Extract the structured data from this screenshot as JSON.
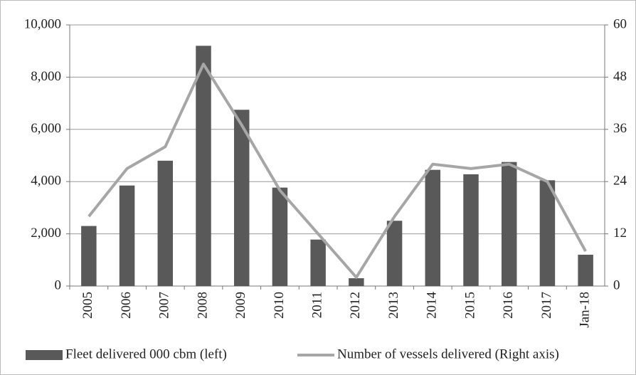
{
  "chart_data": {
    "type": "bar-line",
    "categories": [
      "2005",
      "2006",
      "2007",
      "2008",
      "2009",
      "2010",
      "2011",
      "2012",
      "2013",
      "2014",
      "2015",
      "2016",
      "2017",
      "Jan-18"
    ],
    "series": [
      {
        "name": "Fleet delivered 000 cbm (left)",
        "color": "#595959",
        "type": "bar",
        "axis": "y",
        "values": [
          2300,
          3850,
          4800,
          9200,
          6750,
          3770,
          1780,
          300,
          2500,
          4450,
          4280,
          4750,
          4050,
          1200
        ]
      },
      {
        "name": "Number of vessels delivered (Right axis)",
        "color": "#a6a6a6",
        "type": "line",
        "axis": "y2",
        "values": [
          16,
          27,
          32,
          51,
          37,
          22,
          12,
          2,
          16,
          28,
          27,
          28,
          24,
          8
        ]
      }
    ],
    "ylim": [
      0,
      10000
    ],
    "yticks": [
      0,
      {
        "value": 2000,
        "label": "2,000"
      },
      {
        "value": 4000,
        "label": "4,000"
      },
      {
        "value": 6000,
        "label": "6,000"
      },
      {
        "value": 8000,
        "label": "8,000"
      },
      {
        "value": 10000,
        "label": "10,000"
      }
    ],
    "y2lim": [
      0,
      60
    ],
    "y2ticks": [
      0,
      12,
      24,
      36,
      48,
      60
    ],
    "grid": true,
    "legend": "bottom"
  }
}
